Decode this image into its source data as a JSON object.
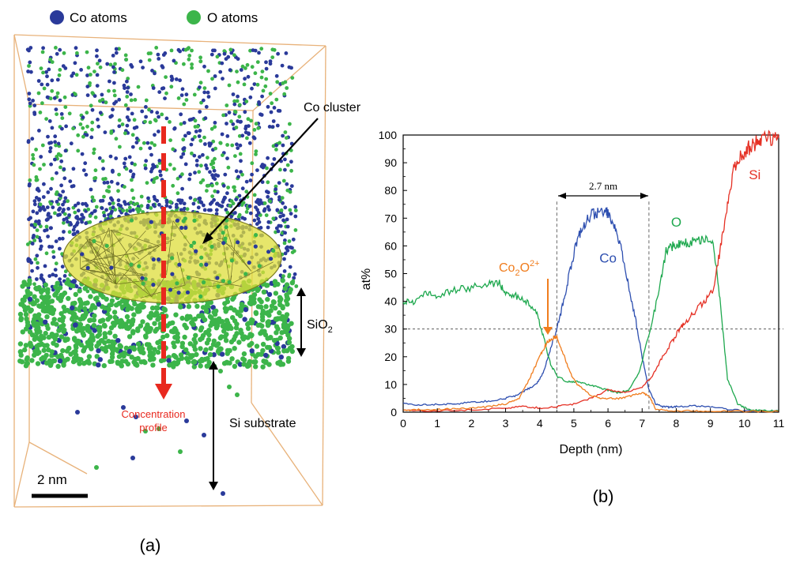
{
  "legend": {
    "co_label": "Co atoms",
    "o_label": "O atoms",
    "co_color": "#2a3a9a",
    "o_color": "#3cb54a"
  },
  "panel_a": {
    "label": "(a)",
    "cluster_label": "Co cluster",
    "profile_label_line1": "Concentration",
    "profile_label_line2": "profile",
    "sio2_label": "SiO",
    "sio2_sub": "2",
    "substrate_label": "Si substrate",
    "scale_label": "2 nm",
    "profile_color": "#e8281e",
    "box_color": "#e8b27a",
    "cluster_color": "#dede3a"
  },
  "panel_b": {
    "label": "(b)",
    "annotation_width": "2.7 nm",
    "annotation_peak_main": "Co",
    "annotation_peak_sub": "2",
    "annotation_peak_tail": "O",
    "annotation_peak_sup": "2+"
  },
  "chart_data": {
    "type": "line",
    "title": "",
    "xlabel": "Depth (nm)",
    "ylabel": "at%",
    "xlim": [
      0,
      11
    ],
    "ylim": [
      0,
      100
    ],
    "xticks": [
      0,
      1,
      2,
      3,
      4,
      5,
      6,
      7,
      8,
      9,
      10,
      11
    ],
    "yticks": [
      0,
      10,
      20,
      30,
      40,
      50,
      60,
      70,
      80,
      90,
      100
    ],
    "grid": false,
    "reference_hline": 30,
    "reference_vlines": [
      4.5,
      7.2
    ],
    "series": [
      {
        "name": "Co",
        "color": "#2e4fb0",
        "x": [
          0,
          0.5,
          1,
          1.5,
          2,
          2.5,
          3,
          3.3,
          3.6,
          3.9,
          4.1,
          4.3,
          4.5,
          4.7,
          4.9,
          5.1,
          5.3,
          5.5,
          5.7,
          5.9,
          6.0,
          6.2,
          6.4,
          6.6,
          6.8,
          7.0,
          7.2,
          7.4,
          7.6,
          7.8,
          8.0,
          8.5,
          9.0,
          9.5,
          10,
          10.5,
          11
        ],
        "y": [
          3,
          2.6,
          2.8,
          3,
          3.5,
          4,
          5,
          6,
          8,
          10,
          14,
          22,
          30,
          40,
          52,
          62,
          68,
          71,
          72,
          73,
          72,
          67,
          58,
          46,
          34,
          20,
          8,
          3,
          2,
          1.8,
          2,
          2.3,
          2,
          1,
          0.5,
          0.4,
          0.4
        ]
      },
      {
        "name": "O",
        "color": "#1ea84e",
        "x": [
          0,
          0.3,
          0.7,
          1,
          1.5,
          2,
          2.5,
          2.8,
          3,
          3.3,
          3.6,
          3.9,
          4.1,
          4.3,
          4.5,
          4.8,
          5.1,
          5.4,
          5.7,
          6.0,
          6.3,
          6.6,
          6.9,
          7.2,
          7.5,
          7.7,
          7.9,
          8.1,
          8.3,
          8.6,
          8.9,
          9.1,
          9.3,
          9.5,
          9.8,
          10.1,
          10.5,
          11
        ],
        "y": [
          40,
          40,
          43,
          42,
          44,
          45,
          46,
          47,
          43,
          42,
          40,
          36,
          28,
          18,
          13,
          11,
          11,
          10,
          9,
          8,
          7,
          8,
          14,
          28,
          44,
          58,
          60,
          61,
          61,
          62,
          63,
          60,
          38,
          12,
          3,
          1,
          0.5,
          0.5
        ]
      },
      {
        "name": "Si",
        "color": "#e53024",
        "x": [
          0,
          1,
          2,
          3,
          3.5,
          4,
          4.5,
          5,
          5.5,
          6,
          6.5,
          7,
          7.3,
          7.6,
          7.9,
          8.1,
          8.3,
          8.6,
          8.9,
          9.1,
          9.3,
          9.5,
          9.7,
          9.9,
          10.1,
          10.3,
          10.5,
          10.8,
          11
        ],
        "y": [
          0.5,
          0.5,
          0.8,
          1.5,
          2,
          1.5,
          2,
          3,
          5,
          8,
          7,
          9,
          13,
          20,
          26,
          30,
          33,
          37,
          41,
          45,
          60,
          75,
          88,
          93,
          95,
          97,
          98,
          99,
          99
        ]
      },
      {
        "name": "Co₂O²⁺",
        "color": "#f07d1e",
        "x": [
          0,
          0.5,
          1,
          1.5,
          2,
          2.5,
          3,
          3.4,
          3.7,
          4.0,
          4.2,
          4.4,
          4.5,
          4.7,
          4.9,
          5.1,
          5.3,
          5.5,
          5.8,
          6.1,
          6.4,
          6.7,
          7.0,
          7.2,
          7.4,
          7.8,
          8.5,
          9,
          10,
          11
        ],
        "y": [
          0.5,
          1,
          1,
          1.2,
          1.5,
          2,
          3,
          5,
          12,
          20,
          25,
          27,
          27,
          21,
          14,
          10,
          8,
          6,
          5,
          5,
          5,
          6,
          7,
          6,
          1,
          0.5,
          0.5,
          0.4,
          0.3,
          0.3
        ]
      }
    ],
    "series_labels": [
      {
        "text": "Co",
        "x": 6.0,
        "y": 54
      },
      {
        "text": "O",
        "x": 8.0,
        "y": 67
      },
      {
        "text": "Si",
        "x": 10.3,
        "y": 84
      }
    ]
  }
}
